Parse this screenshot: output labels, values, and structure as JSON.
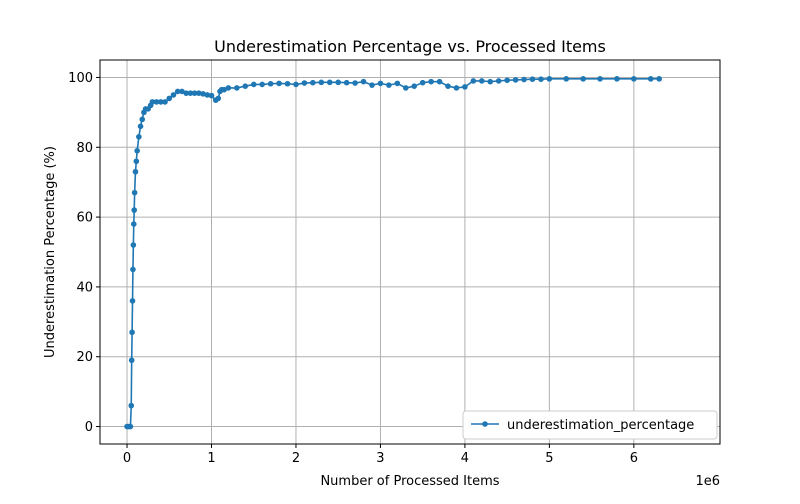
{
  "chart_data": {
    "type": "line",
    "title": "Underestimation Percentage vs. Processed Items",
    "xlabel": "Number of Processed Items",
    "ylabel": "Underestimation Percentage (%)",
    "x_offset_label": "1e6",
    "xlim": [
      -0.32,
      7.02
    ],
    "ylim": [
      -5,
      105
    ],
    "x_ticks": [
      0,
      1,
      2,
      3,
      4,
      5,
      6
    ],
    "x_tick_labels": [
      "0",
      "1",
      "2",
      "3",
      "4",
      "5",
      "6"
    ],
    "y_ticks": [
      0,
      20,
      40,
      60,
      80,
      100
    ],
    "y_tick_labels": [
      "0",
      "20",
      "40",
      "60",
      "80",
      "100"
    ],
    "grid": true,
    "legend": {
      "position": "lower-right",
      "entries": [
        "underestimation_percentage"
      ]
    },
    "colors": {
      "series": "#1f77b4",
      "grid": "#b0b0b0",
      "axes": "#000000"
    },
    "series": [
      {
        "name": "underestimation_percentage",
        "marker": "circle",
        "x": [
          0.0,
          0.02,
          0.04,
          0.05,
          0.055,
          0.06,
          0.065,
          0.07,
          0.075,
          0.08,
          0.085,
          0.09,
          0.1,
          0.11,
          0.12,
          0.14,
          0.16,
          0.18,
          0.2,
          0.22,
          0.25,
          0.28,
          0.3,
          0.35,
          0.4,
          0.45,
          0.5,
          0.55,
          0.6,
          0.65,
          0.7,
          0.75,
          0.8,
          0.85,
          0.9,
          0.95,
          1.0,
          1.05,
          1.08,
          1.1,
          1.12,
          1.15,
          1.2,
          1.3,
          1.4,
          1.5,
          1.6,
          1.7,
          1.8,
          1.9,
          2.0,
          2.1,
          2.2,
          2.3,
          2.4,
          2.5,
          2.6,
          2.7,
          2.8,
          2.9,
          3.0,
          3.1,
          3.2,
          3.3,
          3.4,
          3.5,
          3.6,
          3.7,
          3.8,
          3.9,
          4.0,
          4.1,
          4.2,
          4.3,
          4.4,
          4.5,
          4.6,
          4.7,
          4.8,
          4.9,
          5.0,
          5.2,
          5.4,
          5.6,
          5.8,
          6.0,
          6.2,
          6.3
        ],
        "y": [
          0,
          0,
          0,
          6,
          19,
          27,
          36,
          45,
          52,
          58,
          62,
          67,
          73,
          76,
          79,
          83,
          86,
          88,
          90,
          91,
          91,
          92,
          93,
          93,
          93,
          93,
          94,
          95,
          96,
          96,
          95.5,
          95.5,
          95.5,
          95.5,
          95.3,
          95,
          94.8,
          93.5,
          94,
          96,
          96.5,
          96.5,
          97,
          97,
          97.5,
          98,
          98,
          98.2,
          98.3,
          98.2,
          98,
          98.4,
          98.5,
          98.6,
          98.6,
          98.6,
          98.5,
          98.4,
          98.8,
          97.8,
          98.3,
          97.8,
          98.3,
          97,
          97.5,
          98.5,
          98.8,
          98.8,
          97.5,
          97,
          97.3,
          99,
          99,
          98.8,
          99,
          99.2,
          99.3,
          99.4,
          99.5,
          99.5,
          99.6,
          99.6,
          99.6,
          99.6,
          99.6,
          99.6,
          99.6,
          99.6
        ]
      }
    ]
  }
}
